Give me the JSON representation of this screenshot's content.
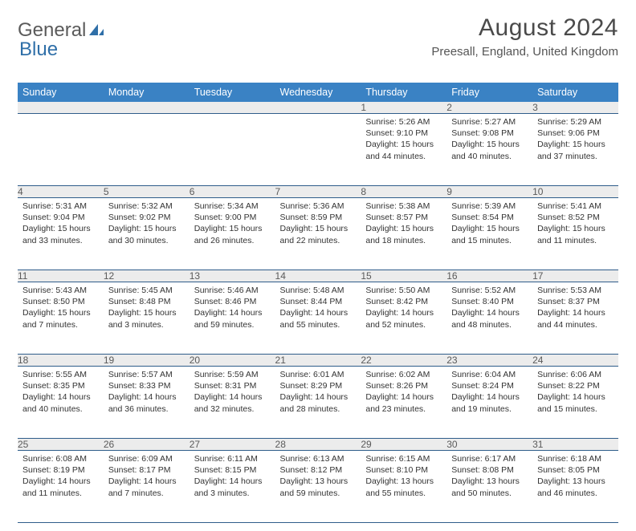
{
  "logo": {
    "word1": "General",
    "word2": "Blue"
  },
  "title": {
    "month": "August 2024",
    "location": "Preesall, England, United Kingdom"
  },
  "colors": {
    "header_bg": "#3a82c4",
    "header_fg": "#ffffff",
    "daynum_bg": "#ececec",
    "row_divider": "#2f5d8a",
    "logo_gray": "#5a5a5a",
    "logo_blue": "#2f6fa8"
  },
  "weekdays": [
    "Sunday",
    "Monday",
    "Tuesday",
    "Wednesday",
    "Thursday",
    "Friday",
    "Saturday"
  ],
  "weeks": [
    {
      "nums": [
        "",
        "",
        "",
        "",
        "1",
        "2",
        "3"
      ],
      "cells": [
        null,
        null,
        null,
        null,
        {
          "sr": "Sunrise: 5:26 AM",
          "ss": "Sunset: 9:10 PM",
          "d1": "Daylight: 15 hours",
          "d2": "and 44 minutes."
        },
        {
          "sr": "Sunrise: 5:27 AM",
          "ss": "Sunset: 9:08 PM",
          "d1": "Daylight: 15 hours",
          "d2": "and 40 minutes."
        },
        {
          "sr": "Sunrise: 5:29 AM",
          "ss": "Sunset: 9:06 PM",
          "d1": "Daylight: 15 hours",
          "d2": "and 37 minutes."
        }
      ]
    },
    {
      "nums": [
        "4",
        "5",
        "6",
        "7",
        "8",
        "9",
        "10"
      ],
      "cells": [
        {
          "sr": "Sunrise: 5:31 AM",
          "ss": "Sunset: 9:04 PM",
          "d1": "Daylight: 15 hours",
          "d2": "and 33 minutes."
        },
        {
          "sr": "Sunrise: 5:32 AM",
          "ss": "Sunset: 9:02 PM",
          "d1": "Daylight: 15 hours",
          "d2": "and 30 minutes."
        },
        {
          "sr": "Sunrise: 5:34 AM",
          "ss": "Sunset: 9:00 PM",
          "d1": "Daylight: 15 hours",
          "d2": "and 26 minutes."
        },
        {
          "sr": "Sunrise: 5:36 AM",
          "ss": "Sunset: 8:59 PM",
          "d1": "Daylight: 15 hours",
          "d2": "and 22 minutes."
        },
        {
          "sr": "Sunrise: 5:38 AM",
          "ss": "Sunset: 8:57 PM",
          "d1": "Daylight: 15 hours",
          "d2": "and 18 minutes."
        },
        {
          "sr": "Sunrise: 5:39 AM",
          "ss": "Sunset: 8:54 PM",
          "d1": "Daylight: 15 hours",
          "d2": "and 15 minutes."
        },
        {
          "sr": "Sunrise: 5:41 AM",
          "ss": "Sunset: 8:52 PM",
          "d1": "Daylight: 15 hours",
          "d2": "and 11 minutes."
        }
      ]
    },
    {
      "nums": [
        "11",
        "12",
        "13",
        "14",
        "15",
        "16",
        "17"
      ],
      "cells": [
        {
          "sr": "Sunrise: 5:43 AM",
          "ss": "Sunset: 8:50 PM",
          "d1": "Daylight: 15 hours",
          "d2": "and 7 minutes."
        },
        {
          "sr": "Sunrise: 5:45 AM",
          "ss": "Sunset: 8:48 PM",
          "d1": "Daylight: 15 hours",
          "d2": "and 3 minutes."
        },
        {
          "sr": "Sunrise: 5:46 AM",
          "ss": "Sunset: 8:46 PM",
          "d1": "Daylight: 14 hours",
          "d2": "and 59 minutes."
        },
        {
          "sr": "Sunrise: 5:48 AM",
          "ss": "Sunset: 8:44 PM",
          "d1": "Daylight: 14 hours",
          "d2": "and 55 minutes."
        },
        {
          "sr": "Sunrise: 5:50 AM",
          "ss": "Sunset: 8:42 PM",
          "d1": "Daylight: 14 hours",
          "d2": "and 52 minutes."
        },
        {
          "sr": "Sunrise: 5:52 AM",
          "ss": "Sunset: 8:40 PM",
          "d1": "Daylight: 14 hours",
          "d2": "and 48 minutes."
        },
        {
          "sr": "Sunrise: 5:53 AM",
          "ss": "Sunset: 8:37 PM",
          "d1": "Daylight: 14 hours",
          "d2": "and 44 minutes."
        }
      ]
    },
    {
      "nums": [
        "18",
        "19",
        "20",
        "21",
        "22",
        "23",
        "24"
      ],
      "cells": [
        {
          "sr": "Sunrise: 5:55 AM",
          "ss": "Sunset: 8:35 PM",
          "d1": "Daylight: 14 hours",
          "d2": "and 40 minutes."
        },
        {
          "sr": "Sunrise: 5:57 AM",
          "ss": "Sunset: 8:33 PM",
          "d1": "Daylight: 14 hours",
          "d2": "and 36 minutes."
        },
        {
          "sr": "Sunrise: 5:59 AM",
          "ss": "Sunset: 8:31 PM",
          "d1": "Daylight: 14 hours",
          "d2": "and 32 minutes."
        },
        {
          "sr": "Sunrise: 6:01 AM",
          "ss": "Sunset: 8:29 PM",
          "d1": "Daylight: 14 hours",
          "d2": "and 28 minutes."
        },
        {
          "sr": "Sunrise: 6:02 AM",
          "ss": "Sunset: 8:26 PM",
          "d1": "Daylight: 14 hours",
          "d2": "and 23 minutes."
        },
        {
          "sr": "Sunrise: 6:04 AM",
          "ss": "Sunset: 8:24 PM",
          "d1": "Daylight: 14 hours",
          "d2": "and 19 minutes."
        },
        {
          "sr": "Sunrise: 6:06 AM",
          "ss": "Sunset: 8:22 PM",
          "d1": "Daylight: 14 hours",
          "d2": "and 15 minutes."
        }
      ]
    },
    {
      "nums": [
        "25",
        "26",
        "27",
        "28",
        "29",
        "30",
        "31"
      ],
      "cells": [
        {
          "sr": "Sunrise: 6:08 AM",
          "ss": "Sunset: 8:19 PM",
          "d1": "Daylight: 14 hours",
          "d2": "and 11 minutes."
        },
        {
          "sr": "Sunrise: 6:09 AM",
          "ss": "Sunset: 8:17 PM",
          "d1": "Daylight: 14 hours",
          "d2": "and 7 minutes."
        },
        {
          "sr": "Sunrise: 6:11 AM",
          "ss": "Sunset: 8:15 PM",
          "d1": "Daylight: 14 hours",
          "d2": "and 3 minutes."
        },
        {
          "sr": "Sunrise: 6:13 AM",
          "ss": "Sunset: 8:12 PM",
          "d1": "Daylight: 13 hours",
          "d2": "and 59 minutes."
        },
        {
          "sr": "Sunrise: 6:15 AM",
          "ss": "Sunset: 8:10 PM",
          "d1": "Daylight: 13 hours",
          "d2": "and 55 minutes."
        },
        {
          "sr": "Sunrise: 6:17 AM",
          "ss": "Sunset: 8:08 PM",
          "d1": "Daylight: 13 hours",
          "d2": "and 50 minutes."
        },
        {
          "sr": "Sunrise: 6:18 AM",
          "ss": "Sunset: 8:05 PM",
          "d1": "Daylight: 13 hours",
          "d2": "and 46 minutes."
        }
      ]
    }
  ]
}
